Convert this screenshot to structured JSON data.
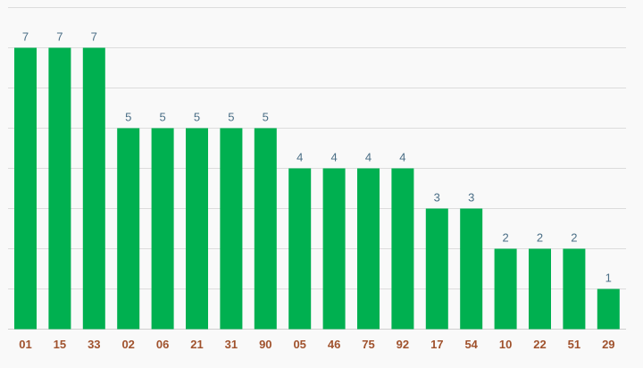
{
  "chart_data": {
    "type": "bar",
    "categories": [
      "01",
      "15",
      "33",
      "02",
      "06",
      "21",
      "31",
      "90",
      "05",
      "46",
      "75",
      "92",
      "17",
      "54",
      "10",
      "22",
      "51",
      "29"
    ],
    "values": [
      7,
      7,
      7,
      5,
      5,
      5,
      5,
      5,
      4,
      4,
      4,
      4,
      3,
      3,
      2,
      2,
      2,
      1
    ],
    "title": "",
    "xlabel": "",
    "ylabel": "",
    "ylim": [
      0,
      8
    ],
    "grid": true,
    "data_labels": true,
    "colors": {
      "bar": "#00b050",
      "value_label": "#4a6e86",
      "tick_label": "#a0522d",
      "grid": "#dcdcdc",
      "background": "#f9f9f9"
    }
  }
}
